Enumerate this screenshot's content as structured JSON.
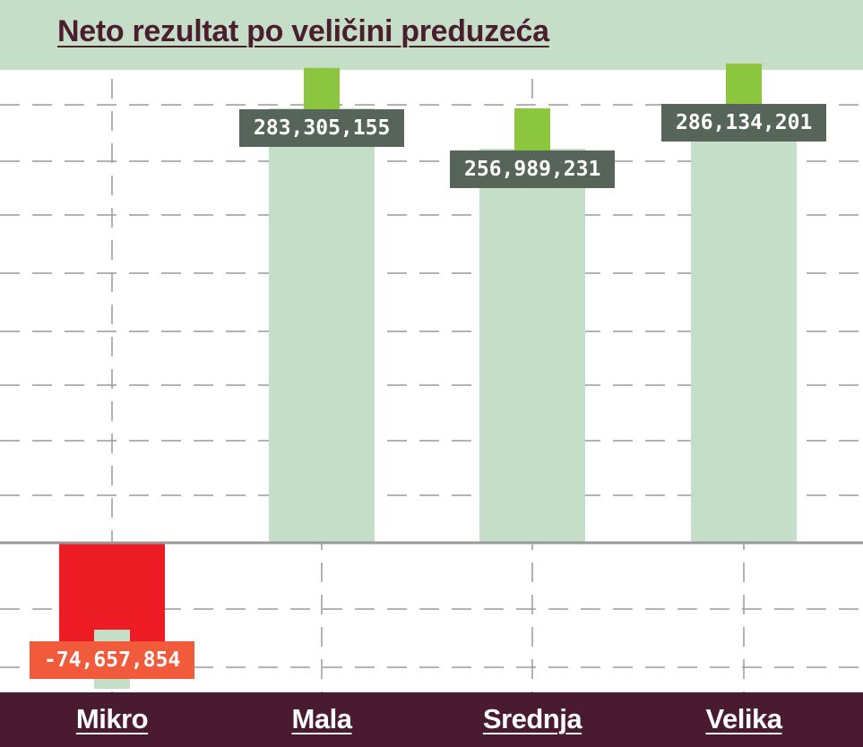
{
  "chart_data": {
    "type": "bar",
    "title": "Neto rezultat po veličini preduzeća",
    "categories": [
      "Mikro",
      "Mala",
      "Srednja",
      "Velika"
    ],
    "values": [
      -74657854,
      283305155,
      256989231,
      286134201
    ],
    "value_labels": [
      "-74,657,854",
      "283,305,155",
      "256,989,231",
      "286,134,201"
    ],
    "xlabel": "",
    "ylabel": "",
    "ylim": [
      -75000000,
      300000000
    ],
    "grid": true,
    "legend": "none"
  },
  "colors": {
    "title_band": "#c5dec8",
    "title_text": "#4a1d2f",
    "footer_band": "#4a1a30",
    "positive_bar": "#c5dec8",
    "negative_bar": "#ed1c24",
    "marker": "#8cc63f",
    "positive_label_bg": "#56645a",
    "negative_label_bg": "#f15a3a",
    "zero_line": "#999999",
    "grid_line": "#9a9a9a"
  }
}
